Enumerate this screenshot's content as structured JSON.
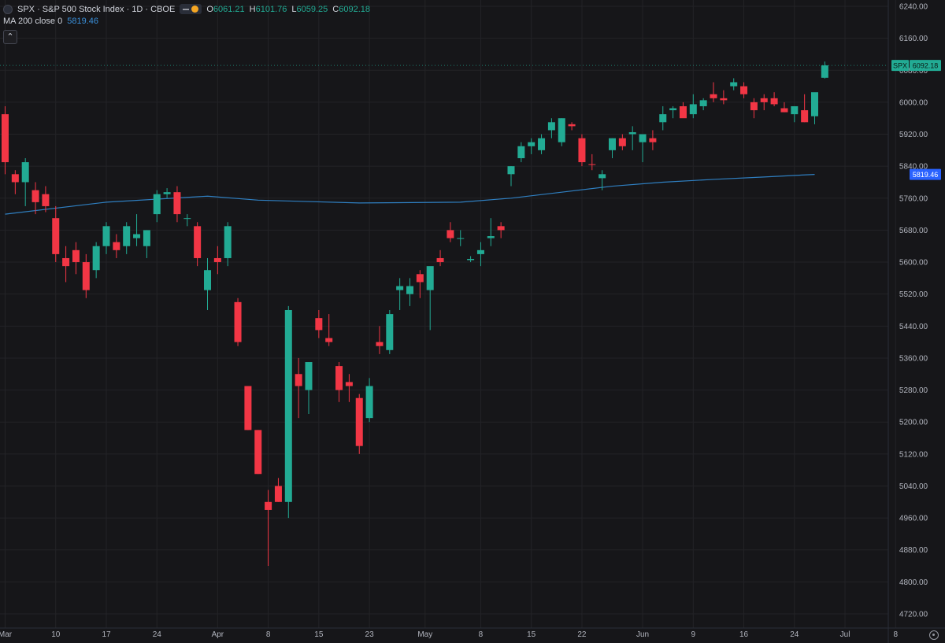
{
  "header": {
    "symbol_line": "SPX · S&P 500 Stock Index · 1D · CBOE",
    "ohlc": [
      {
        "k": "O",
        "v": "6061.21"
      },
      {
        "k": "H",
        "v": "6101.76"
      },
      {
        "k": "L",
        "v": "6059.25"
      },
      {
        "k": "C",
        "v": "6092.18"
      }
    ],
    "ma_label": "MA 200 close 0",
    "ma_value": "5819.46"
  },
  "colors": {
    "up": "#22ab94",
    "down": "#f23645",
    "ma": "#2f7fc1",
    "bg": "#161619",
    "grid": "#232327",
    "axis_text": "#b2b5be"
  },
  "price_tag": {
    "symbol": "SPX",
    "value": "6092.18"
  },
  "ma_tag": {
    "value": "5819.46"
  },
  "chart_data": {
    "type": "candlestick",
    "ylim": [
      4680,
      6260
    ],
    "y_ticks": [
      "6240.00",
      "6160.00",
      "6080.00",
      "6000.00",
      "5920.00",
      "5840.00",
      "5760.00",
      "5680.00",
      "5600.00",
      "5520.00",
      "5440.00",
      "5360.00",
      "5280.00",
      "5200.00",
      "5120.00",
      "5040.00",
      "4960.00",
      "4880.00",
      "4800.00",
      "4720.00"
    ],
    "x_labels": [
      {
        "i": 0,
        "t": "Mar"
      },
      {
        "i": 5,
        "t": "10"
      },
      {
        "i": 10,
        "t": "17"
      },
      {
        "i": 15,
        "t": "24"
      },
      {
        "i": 21,
        "t": "Apr"
      },
      {
        "i": 26,
        "t": "8"
      },
      {
        "i": 31,
        "t": "15"
      },
      {
        "i": 36,
        "t": "23"
      },
      {
        "i": 41.5,
        "t": "May"
      },
      {
        "i": 47,
        "t": "8"
      },
      {
        "i": 52,
        "t": "15"
      },
      {
        "i": 57,
        "t": "22"
      },
      {
        "i": 63,
        "t": "Jun"
      },
      {
        "i": 68,
        "t": "9"
      },
      {
        "i": 73,
        "t": "16"
      },
      {
        "i": 78,
        "t": "24"
      },
      {
        "i": 83,
        "t": "Jul"
      },
      {
        "i": 88,
        "t": "8"
      }
    ],
    "candles": [
      {
        "o": 5970,
        "h": 5990,
        "l": 5820,
        "c": 5850
      },
      {
        "o": 5820,
        "h": 5830,
        "l": 5770,
        "c": 5800
      },
      {
        "o": 5800,
        "h": 5860,
        "l": 5740,
        "c": 5850
      },
      {
        "o": 5780,
        "h": 5800,
        "l": 5720,
        "c": 5750
      },
      {
        "o": 5770,
        "h": 5790,
        "l": 5725,
        "c": 5740
      },
      {
        "o": 5710,
        "h": 5740,
        "l": 5600,
        "c": 5620
      },
      {
        "o": 5610,
        "h": 5640,
        "l": 5550,
        "c": 5590
      },
      {
        "o": 5630,
        "h": 5650,
        "l": 5570,
        "c": 5600
      },
      {
        "o": 5600,
        "h": 5620,
        "l": 5510,
        "c": 5530
      },
      {
        "o": 5580,
        "h": 5650,
        "l": 5560,
        "c": 5640
      },
      {
        "o": 5640,
        "h": 5700,
        "l": 5620,
        "c": 5690
      },
      {
        "o": 5650,
        "h": 5670,
        "l": 5610,
        "c": 5630
      },
      {
        "o": 5640,
        "h": 5700,
        "l": 5620,
        "c": 5690
      },
      {
        "o": 5660,
        "h": 5720,
        "l": 5640,
        "c": 5670
      },
      {
        "o": 5640,
        "h": 5680,
        "l": 5610,
        "c": 5680
      },
      {
        "o": 5720,
        "h": 5780,
        "l": 5700,
        "c": 5770
      },
      {
        "o": 5770,
        "h": 5785,
        "l": 5760,
        "c": 5775
      },
      {
        "o": 5775,
        "h": 5790,
        "l": 5700,
        "c": 5720
      },
      {
        "o": 5710,
        "h": 5720,
        "l": 5690,
        "c": 5710
      },
      {
        "o": 5690,
        "h": 5700,
        "l": 5590,
        "c": 5610
      },
      {
        "o": 5530,
        "h": 5610,
        "l": 5480,
        "c": 5580
      },
      {
        "o": 5610,
        "h": 5640,
        "l": 5570,
        "c": 5600
      },
      {
        "o": 5610,
        "h": 5700,
        "l": 5590,
        "c": 5690
      },
      {
        "o": 5500,
        "h": 5510,
        "l": 5390,
        "c": 5400
      },
      {
        "o": 5290,
        "h": 5290,
        "l": 5180,
        "c": 5180
      },
      {
        "o": 5180,
        "h": 5180,
        "l": 5070,
        "c": 5070
      },
      {
        "o": 5000,
        "h": 5030,
        "l": 4840,
        "c": 4980
      },
      {
        "o": 5040,
        "h": 5060,
        "l": 5000,
        "c": 5000
      },
      {
        "o": 5000,
        "h": 5490,
        "l": 4960,
        "c": 5480
      },
      {
        "o": 5320,
        "h": 5360,
        "l": 5210,
        "c": 5290
      },
      {
        "o": 5280,
        "h": 5350,
        "l": 5220,
        "c": 5350
      },
      {
        "o": 5460,
        "h": 5480,
        "l": 5410,
        "c": 5430
      },
      {
        "o": 5410,
        "h": 5470,
        "l": 5390,
        "c": 5400
      },
      {
        "o": 5340,
        "h": 5350,
        "l": 5250,
        "c": 5280
      },
      {
        "o": 5300,
        "h": 5320,
        "l": 5250,
        "c": 5290
      },
      {
        "o": 5260,
        "h": 5270,
        "l": 5120,
        "c": 5140
      },
      {
        "o": 5210,
        "h": 5310,
        "l": 5200,
        "c": 5290
      },
      {
        "o": 5400,
        "h": 5440,
        "l": 5370,
        "c": 5390
      },
      {
        "o": 5380,
        "h": 5480,
        "l": 5370,
        "c": 5470
      },
      {
        "o": 5530,
        "h": 5560,
        "l": 5480,
        "c": 5540
      },
      {
        "o": 5520,
        "h": 5560,
        "l": 5490,
        "c": 5540
      },
      {
        "o": 5570,
        "h": 5580,
        "l": 5510,
        "c": 5550
      },
      {
        "o": 5530,
        "h": 5580,
        "l": 5430,
        "c": 5590
      },
      {
        "o": 5610,
        "h": 5630,
        "l": 5590,
        "c": 5600
      },
      {
        "o": 5680,
        "h": 5700,
        "l": 5650,
        "c": 5660
      },
      {
        "o": 5660,
        "h": 5680,
        "l": 5640,
        "c": 5660
      },
      {
        "o": 5605,
        "h": 5615,
        "l": 5600,
        "c": 5608
      },
      {
        "o": 5620,
        "h": 5650,
        "l": 5590,
        "c": 5630
      },
      {
        "o": 5660,
        "h": 5710,
        "l": 5640,
        "c": 5665
      },
      {
        "o": 5690,
        "h": 5700,
        "l": 5660,
        "c": 5680
      },
      {
        "o": 5820,
        "h": 5840,
        "l": 5790,
        "c": 5840
      },
      {
        "o": 5860,
        "h": 5900,
        "l": 5850,
        "c": 5890
      },
      {
        "o": 5890,
        "h": 5910,
        "l": 5870,
        "c": 5900
      },
      {
        "o": 5880,
        "h": 5920,
        "l": 5870,
        "c": 5910
      },
      {
        "o": 5930,
        "h": 5960,
        "l": 5910,
        "c": 5950
      },
      {
        "o": 5900,
        "h": 5960,
        "l": 5890,
        "c": 5960
      },
      {
        "o": 5945,
        "h": 5950,
        "l": 5930,
        "c": 5940
      },
      {
        "o": 5910,
        "h": 5920,
        "l": 5840,
        "c": 5850
      },
      {
        "o": 5845,
        "h": 5870,
        "l": 5830,
        "c": 5844
      },
      {
        "o": 5810,
        "h": 5830,
        "l": 5780,
        "c": 5820
      },
      {
        "o": 5880,
        "h": 5910,
        "l": 5860,
        "c": 5910
      },
      {
        "o": 5910,
        "h": 5920,
        "l": 5880,
        "c": 5890
      },
      {
        "o": 5920,
        "h": 5940,
        "l": 5880,
        "c": 5925
      },
      {
        "o": 5900,
        "h": 5920,
        "l": 5850,
        "c": 5920
      },
      {
        "o": 5910,
        "h": 5930,
        "l": 5880,
        "c": 5900
      },
      {
        "o": 5950,
        "h": 5990,
        "l": 5930,
        "c": 5970
      },
      {
        "o": 5980,
        "h": 5990,
        "l": 5960,
        "c": 5985
      },
      {
        "o": 5990,
        "h": 6000,
        "l": 5970,
        "c": 5960
      },
      {
        "o": 5970,
        "h": 6020,
        "l": 5960,
        "c": 5995
      },
      {
        "o": 5990,
        "h": 6010,
        "l": 5980,
        "c": 6005
      },
      {
        "o": 6020,
        "h": 6050,
        "l": 6000,
        "c": 6010
      },
      {
        "o": 6010,
        "h": 6030,
        "l": 5995,
        "c": 6005
      },
      {
        "o": 6040,
        "h": 6060,
        "l": 6030,
        "c": 6050
      },
      {
        "o": 6040,
        "h": 6050,
        "l": 6010,
        "c": 6020
      },
      {
        "o": 6000,
        "h": 6010,
        "l": 5960,
        "c": 5980
      },
      {
        "o": 6010,
        "h": 6020,
        "l": 5980,
        "c": 6000
      },
      {
        "o": 6010,
        "h": 6025,
        "l": 5990,
        "c": 5995
      },
      {
        "o": 5985,
        "h": 6000,
        "l": 5975,
        "c": 5975
      },
      {
        "o": 5970,
        "h": 5990,
        "l": 5950,
        "c": 5990
      },
      {
        "o": 5980,
        "h": 6020,
        "l": 5950,
        "c": 5950
      },
      {
        "o": 5965,
        "h": 6010,
        "l": 5945,
        "c": 6025
      },
      {
        "o": 6061.21,
        "h": 6101.76,
        "l": 6059.25,
        "c": 6092.18
      }
    ],
    "ma200": [
      {
        "i": 0,
        "v": 5720
      },
      {
        "i": 10,
        "v": 5750
      },
      {
        "i": 20,
        "v": 5765
      },
      {
        "i": 25,
        "v": 5755
      },
      {
        "i": 35,
        "v": 5748
      },
      {
        "i": 45,
        "v": 5750
      },
      {
        "i": 50,
        "v": 5760
      },
      {
        "i": 55,
        "v": 5775
      },
      {
        "i": 60,
        "v": 5790
      },
      {
        "i": 65,
        "v": 5800
      },
      {
        "i": 70,
        "v": 5807
      },
      {
        "i": 75,
        "v": 5813
      },
      {
        "i": 80,
        "v": 5819.46
      }
    ]
  }
}
